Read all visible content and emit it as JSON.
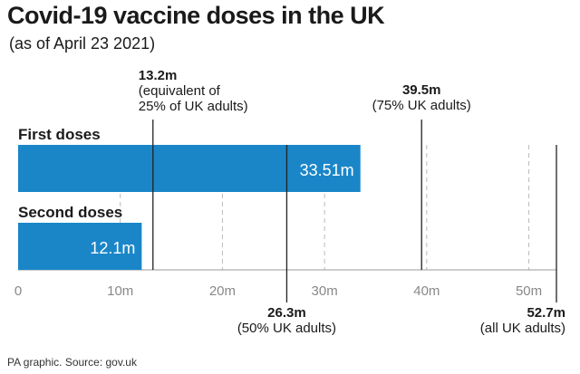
{
  "header": {
    "title": "Covid-19 vaccine doses in the UK",
    "subtitle": "(as of April 23 2021)"
  },
  "footer": {
    "source": "PA graphic. Source: gov.uk"
  },
  "colors": {
    "bar": "#1a86c8",
    "reference_line": "#222222",
    "grid": "#bbbbbb",
    "axis_text": "#888888"
  },
  "chart_data": {
    "type": "bar",
    "orientation": "horizontal",
    "categories": [
      "First doses",
      "Second doses"
    ],
    "values": [
      33.51,
      12.1
    ],
    "value_labels": [
      "33.51m",
      "12.1m"
    ],
    "xlim": [
      0,
      52.7
    ],
    "xticks": [
      0,
      10,
      20,
      30,
      40,
      50
    ],
    "xtick_labels": [
      "0",
      "10m",
      "20m",
      "30m",
      "40m",
      "50m"
    ],
    "grid": true,
    "reference_lines": [
      {
        "value": 13.2,
        "label_value": "13.2m",
        "label_lines": [
          "(equivalent of",
          "25% of UK adults)"
        ],
        "position": "top"
      },
      {
        "value": 39.5,
        "label_value": "39.5m",
        "label_lines": [
          "(75% UK adults)"
        ],
        "position": "top"
      },
      {
        "value": 26.3,
        "label_value": "26.3m",
        "label_lines": [
          "(50% UK adults)"
        ],
        "position": "bottom"
      },
      {
        "value": 52.7,
        "label_value": "52.7m",
        "label_lines": [
          "(all UK adults)"
        ],
        "position": "bottom"
      }
    ]
  }
}
